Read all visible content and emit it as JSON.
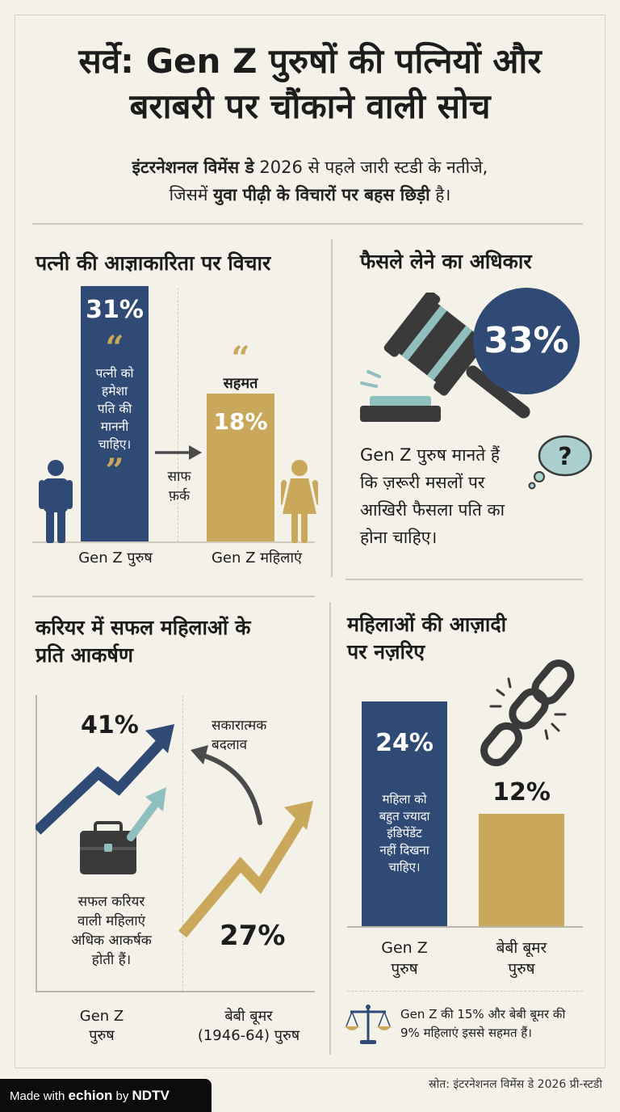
{
  "header": {
    "title_line1": "सर्वे: Gen Z पुरुषों की पत्नियों और",
    "title_line2": "बराबरी पर चौंकाने वाली सोच",
    "subtitle_line1_bold": "इंटरनेशनल विमेंस डे",
    "subtitle_line1_rest": " 2026 से पहले जारी स्टडी के नतीजे,",
    "subtitle_line2_start": "जिसमें ",
    "subtitle_line2_bold": "युवा पीढ़ी के विचारों पर बहस छिड़ी",
    "subtitle_line2_end": " है।"
  },
  "obedience": {
    "title": "पत्नी की आज्ञाकारिता पर विचार",
    "quote_line1": "पत्नी को",
    "quote_line2": "हमेशा",
    "quote_line3": "पति की",
    "quote_line4": "माननी",
    "quote_line5": "चाहिए।",
    "agree_label": "सहमत",
    "gap_line1": "साफ",
    "gap_line2": "फ़र्क",
    "men_label": "Gen Z पुरुष",
    "women_label": "Gen Z महिलाएं"
  },
  "decision": {
    "title": "फैसले लेने का अधिकार",
    "percent": "33%",
    "text_line1": "Gen Z पुरुष मानते हैं",
    "text_line2": "कि ज़रूरी मसलों पर",
    "text_line3": "आखिरी फैसला पति का",
    "text_line4": "होना चाहिए।",
    "icon": "gavel-icon"
  },
  "career": {
    "title_line1": "करियर में सफल महिलाओं के",
    "title_line2": "प्रति आकर्षण",
    "change_line1": "सकारात्मक",
    "change_line2": "बदलाव",
    "note_line1": "सफल करियर",
    "note_line2": "वाली महिलाएं",
    "note_line3": "अधिक आकर्षक",
    "note_line4": "होती हैं।",
    "genz_line1": "Gen Z",
    "genz_line2": "पुरुष",
    "boomer_line1": "बेबी बूमर",
    "boomer_line2": "(1946-64) पुरुष"
  },
  "freedom": {
    "title_line1": "महिलाओं की आज़ादी",
    "title_line2": "पर नज़रिए",
    "quote_line1": "महिला को",
    "quote_line2": "बहुत ज्यादा",
    "quote_line3": "इंडिपेंडेंट",
    "quote_line4": "नहीं दिखना",
    "quote_line5": "चाहिए।",
    "genz_line1": "Gen Z",
    "genz_line2": "पुरुष",
    "boomer_line1": "बेबी बूमर",
    "boomer_line2": "पुरुष",
    "note_line1": "Gen Z की 15% और बेबी बूमर की",
    "note_line2": "9% महिलाएं इससे सहमत हैं।"
  },
  "footer": {
    "made_with": "Made with ",
    "echion": "echion",
    "by": " by ",
    "ndtv": "NDTV",
    "source": "स्रोत: इंटरनेशनल विमेंस डे 2026 प्री-स्टडी"
  },
  "colors": {
    "navy": "#2f4a74",
    "gold": "#c9a85c",
    "charcoal": "#3a3a3a",
    "teal": "#8fbfbf",
    "background": "#f4f1e8"
  },
  "chart_data": [
    {
      "type": "bar",
      "title": "पत्नी की आज्ञाकारिता पर विचार",
      "categories": [
        "Gen Z पुरुष",
        "Gen Z महिलाएं"
      ],
      "values": [
        31,
        18
      ],
      "labels": [
        "31%",
        "18%"
      ],
      "colors": [
        "#2f4a74",
        "#c9a85c"
      ],
      "ylim": [
        0,
        31
      ]
    },
    {
      "type": "pie",
      "title": "फैसले लेने का अधिकार",
      "values": [
        33
      ],
      "labels": [
        "33%"
      ]
    },
    {
      "type": "line",
      "title": "करियर में सफल महिलाओं के प्रति आकर्षण",
      "categories": [
        "Gen Z पुरुष",
        "बेबी बूमर (1946-64) पुरुष"
      ],
      "values": [
        41,
        27
      ],
      "labels": [
        "41%",
        "27%"
      ],
      "colors": [
        "#2f4a74",
        "#c9a85c"
      ]
    },
    {
      "type": "bar",
      "title": "महिलाओं की आज़ादी पर नज़रिए",
      "categories": [
        "Gen Z पुरुष",
        "बेबी बूमर पुरुष"
      ],
      "values": [
        24,
        12
      ],
      "labels": [
        "24%",
        "12%"
      ],
      "colors": [
        "#2f4a74",
        "#c9a85c"
      ],
      "ylim": [
        0,
        24
      ]
    }
  ]
}
